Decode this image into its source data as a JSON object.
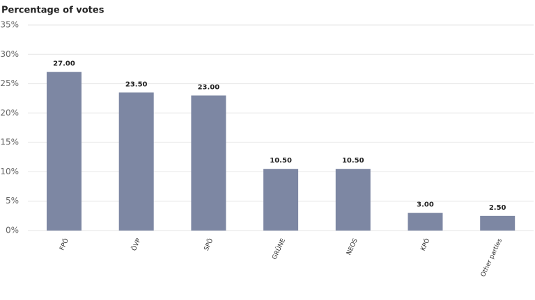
{
  "chart_data": {
    "type": "bar",
    "title": "Percentage of votes",
    "categories": [
      "FPÖ",
      "ÖVP",
      "SPÖ",
      "GRÜNE",
      "NEOS",
      "KPÖ",
      "Other parties"
    ],
    "values": [
      27,
      23.5,
      23,
      10.5,
      10.5,
      3,
      2.5
    ],
    "value_labels": [
      "27.00",
      "23.50",
      "23.00",
      "10.50",
      "10.50",
      "3.00",
      "2.50"
    ],
    "color": "#7d87a3",
    "ylim": [
      0,
      35
    ],
    "yticks": [
      {
        "value": 0,
        "label": "0%"
      },
      {
        "value": 5,
        "label": "5%"
      },
      {
        "value": 10,
        "label": "10%"
      },
      {
        "value": 15,
        "label": "15%"
      },
      {
        "value": 20,
        "label": "20%"
      },
      {
        "value": 25,
        "label": "25%"
      },
      {
        "value": 30,
        "label": "30%"
      },
      {
        "value": 35,
        "label": "35%"
      }
    ],
    "grid": true
  }
}
